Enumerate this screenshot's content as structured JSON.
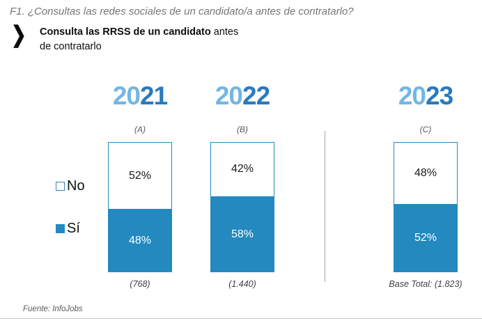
{
  "header": {
    "question_label": "F1. ¿Consultas las redes sociales de un candidato/a antes de contratarlo?",
    "subtitle_bold": "Consulta las RRSS de un candidato",
    "subtitle_regular": " antes de contratarlo"
  },
  "chart_data": {
    "type": "bar",
    "stacked": true,
    "orientation": "vertical",
    "categories": [
      "2021",
      "2022",
      "2023"
    ],
    "column_letters": [
      "(A)",
      "(B)",
      "(C)"
    ],
    "series": [
      {
        "name": "No",
        "values": [
          52,
          42,
          48
        ],
        "color": "#FFFFFF",
        "label_color": "#1a1a1a"
      },
      {
        "name": "Sí",
        "values": [
          48,
          58,
          52
        ],
        "color": "#2389BF",
        "label_color": "#FFFFFF"
      }
    ],
    "value_suffix": "%",
    "base_labels": [
      "(768)",
      "(1.440)",
      "Base Total: (1.823)"
    ],
    "legend_position": "left",
    "ylim": [
      0,
      100
    ],
    "grid": false
  },
  "colors": {
    "bar_blue": "#2389BF",
    "year_light_blue": "#74B6E3",
    "year_dark_blue": "#2A7ABF",
    "title_gray": "#767676"
  },
  "footer": {
    "source": "Fuente: InfoJobs"
  }
}
